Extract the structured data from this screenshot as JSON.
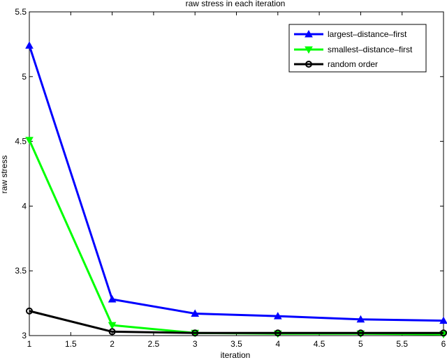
{
  "chart_data": {
    "type": "line",
    "title": "raw stress in each iteration",
    "xlabel": "iteration",
    "ylabel": "raw stress",
    "xlim": [
      1,
      6
    ],
    "ylim": [
      3,
      5.5
    ],
    "xticks": [
      1,
      1.5,
      2,
      2.5,
      3,
      3.5,
      4,
      4.5,
      5,
      5.5,
      6
    ],
    "yticks": [
      3,
      3.5,
      4,
      4.5,
      5,
      5.5
    ],
    "x": [
      1,
      2,
      3,
      4,
      5,
      6
    ],
    "grid": false,
    "legend_position": "top-right",
    "series": [
      {
        "name": "largest–distance–first",
        "color": "#0000ff",
        "marker": "triangle-up",
        "values": [
          5.24,
          3.28,
          3.17,
          3.15,
          3.125,
          3.115
        ]
      },
      {
        "name": "smallest–distance–first",
        "color": "#00ff00",
        "marker": "triangle-down",
        "values": [
          4.51,
          3.08,
          3.02,
          3.015,
          3.015,
          3.01
        ]
      },
      {
        "name": "random order",
        "color": "#000000",
        "marker": "circle",
        "values": [
          3.19,
          3.03,
          3.02,
          3.02,
          3.02,
          3.02
        ]
      }
    ]
  }
}
